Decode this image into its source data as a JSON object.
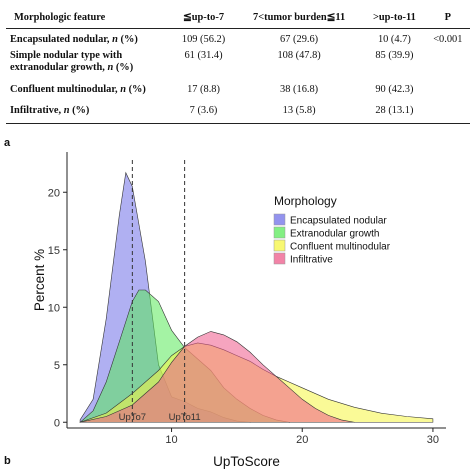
{
  "table": {
    "headers": [
      "Morphologic feature",
      "≦up-to-7",
      "7<tumor burden≦11",
      ">up-to-11",
      "P"
    ],
    "rows": [
      {
        "label": "Encapsulated nodular, ",
        "label_italic": "n",
        "label_tail": " (%)",
        "v1": "109 (56.2)",
        "v2": "67 (29.6)",
        "v3": "10 (4.7)",
        "p": "<0.001"
      },
      {
        "label": "Simple nodular type with extranodular growth, ",
        "label_italic": "n",
        "label_tail": " (%)",
        "v1": "61 (31.4)",
        "v2": "108 (47.8)",
        "v3": "85 (39.9)",
        "p": ""
      },
      {
        "label": "Confluent multinodular, ",
        "label_italic": "n",
        "label_tail": " (%)",
        "v1": "17 (8.8)",
        "v2": "38 (16.8)",
        "v3": "90 (42.3)",
        "p": ""
      },
      {
        "label": "Infiltrative, ",
        "label_italic": "n",
        "label_tail": " (%)",
        "v1": "7 (3.6)",
        "v2": "13 (5.8)",
        "v3": "28 (13.1)",
        "p": ""
      }
    ]
  },
  "panel_labels": {
    "a": "a",
    "b": "b"
  },
  "chart_data": {
    "type": "area",
    "xlabel": "UpToScore",
    "ylabel": "Percent %",
    "xlim": [
      2,
      31
    ],
    "ylim": [
      -0.5,
      23.5
    ],
    "xticks": [
      10,
      20,
      30
    ],
    "yticks": [
      0,
      5,
      10,
      15,
      20
    ],
    "legend_title": "Morphology",
    "legend_position": "right",
    "vlines": [
      {
        "x": 7,
        "label": "UpTo7"
      },
      {
        "x": 11,
        "label": "UpTo11"
      }
    ],
    "series": [
      {
        "name": "Encapsulated nodular",
        "color": "#6f6fe8",
        "points": [
          [
            3,
            0.2
          ],
          [
            4,
            2
          ],
          [
            5,
            9
          ],
          [
            6,
            18
          ],
          [
            6.5,
            21.7
          ],
          [
            7,
            20.5
          ],
          [
            8,
            14
          ],
          [
            9,
            5
          ],
          [
            10,
            2.2
          ],
          [
            11,
            1.8
          ],
          [
            12,
            1.2
          ],
          [
            13,
            0.9
          ],
          [
            14,
            0.4
          ],
          [
            15,
            0.1
          ],
          [
            16,
            0
          ]
        ]
      },
      {
        "name": "Extranodular growth",
        "color": "#5aea5a",
        "points": [
          [
            3,
            0
          ],
          [
            4,
            1
          ],
          [
            5,
            3.5
          ],
          [
            6,
            7
          ],
          [
            7,
            10.5
          ],
          [
            7.5,
            11.5
          ],
          [
            8,
            11.5
          ],
          [
            9,
            10.5
          ],
          [
            10,
            8
          ],
          [
            11,
            6.5
          ],
          [
            12,
            5.5
          ],
          [
            13,
            4.5
          ],
          [
            14,
            3
          ],
          [
            15,
            2
          ],
          [
            16,
            1.2
          ],
          [
            17,
            0.6
          ],
          [
            18,
            0.2
          ],
          [
            19,
            0
          ]
        ]
      },
      {
        "name": "Confluent multinodular",
        "color": "#f5f542",
        "points": [
          [
            3,
            0
          ],
          [
            5,
            0.8
          ],
          [
            7,
            2.5
          ],
          [
            9,
            4.5
          ],
          [
            10,
            5.8
          ],
          [
            11,
            6.6
          ],
          [
            12,
            6.9
          ],
          [
            13,
            6.7
          ],
          [
            14,
            6.3
          ],
          [
            15,
            5.8
          ],
          [
            16,
            5.3
          ],
          [
            17,
            4.6
          ],
          [
            18,
            4
          ],
          [
            20,
            3
          ],
          [
            22,
            2
          ],
          [
            24,
            1.3
          ],
          [
            26,
            0.8
          ],
          [
            28,
            0.5
          ],
          [
            30,
            0.3
          ]
        ]
      },
      {
        "name": "Infiltrative",
        "color": "#ee5a8a",
        "points": [
          [
            3,
            0
          ],
          [
            5,
            0.5
          ],
          [
            7,
            1.5
          ],
          [
            9,
            3.5
          ],
          [
            10,
            5.2
          ],
          [
            11,
            6.6
          ],
          [
            12,
            7.4
          ],
          [
            13,
            7.9
          ],
          [
            14,
            7.6
          ],
          [
            15,
            7
          ],
          [
            16,
            6.1
          ],
          [
            17,
            5
          ],
          [
            18,
            4
          ],
          [
            19,
            3
          ],
          [
            20,
            2
          ],
          [
            21,
            1.2
          ],
          [
            22,
            0.6
          ],
          [
            23,
            0.2
          ],
          [
            24,
            0
          ]
        ]
      }
    ]
  }
}
